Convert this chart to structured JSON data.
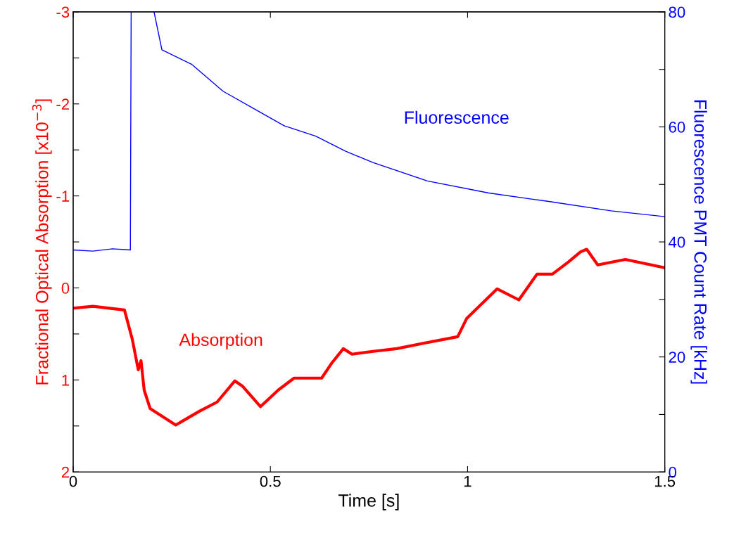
{
  "chart_data": {
    "type": "line",
    "xlabel": "Time [s]",
    "ylabel": "Fractional Optical Absorption [x10$^{−3}$]",
    "y2label": "Fluorescence PMT Count Rate [kHz]",
    "xlim": [
      0,
      1.5
    ],
    "xticks": [
      0,
      0.5,
      1,
      1.5
    ],
    "ylim": [
      2,
      -3
    ],
    "yticks": [
      -3,
      {
        "value": -2.5,
        "label": null
      },
      -2,
      {
        "value": -1.5,
        "label": null
      },
      -1,
      {
        "value": -0.5,
        "label": null
      },
      0,
      {
        "value": 0.5,
        "label": null
      },
      1,
      {
        "value": 1.5,
        "label": null
      },
      2
    ],
    "y2lim": [
      0,
      80
    ],
    "y2ticks": [
      0,
      {
        "value": 10,
        "label": null
      },
      20,
      {
        "value": 30,
        "label": null
      },
      40,
      {
        "value": 50,
        "label": null
      },
      60,
      {
        "value": 70,
        "label": null
      },
      80
    ],
    "grid": false,
    "legend": false,
    "line_style": "solid",
    "marker": "none",
    "series": [
      {
        "color": "#ff0000",
        "x": [
          0,
          0.05,
          0.13,
          0.15,
          0.165,
          0.172,
          0.18,
          0.195,
          0.26,
          0.32,
          0.365,
          0.41,
          0.43,
          0.475,
          0.52,
          0.56,
          0.63,
          0.655,
          0.685,
          0.707,
          0.76,
          0.82,
          0.89,
          0.975,
          0.998,
          1.075,
          1.13,
          1.176,
          1.215,
          1.255,
          1.286,
          1.302,
          1.33,
          1.4,
          1.5
        ],
        "values": [
          0.22,
          0.2,
          0.24,
          0.56,
          0.89,
          0.79,
          1.11,
          1.31,
          1.49,
          1.34,
          1.24,
          1.01,
          1.07,
          1.29,
          1.11,
          0.98,
          0.98,
          0.82,
          0.66,
          0.72,
          0.69,
          0.66,
          0.6,
          0.53,
          0.33,
          0.01,
          0.13,
          -0.15,
          -0.15,
          -0.28,
          -0.39,
          -0.42,
          -0.25,
          -0.31,
          -0.22
        ]
      },
      {
        "color": "#0000ff",
        "axis": "y2",
        "x": [
          0,
          0.05,
          0.1,
          0.145,
          0.147,
          0.18,
          0.205,
          0.225,
          0.3,
          0.38,
          0.46,
          0.535,
          0.615,
          0.69,
          0.76,
          0.898,
          1.054,
          1.209,
          1.364,
          1.5
        ],
        "values": [
          38.6,
          38.4,
          38.8,
          38.6,
          80,
          null,
          80,
          73.4,
          70.9,
          66.2,
          63.1,
          60.2,
          58.4,
          55.8,
          53.8,
          50.6,
          48.5,
          47.0,
          45.4,
          44.4
        ]
      }
    ],
    "annotations": [
      "Absorption",
      "Fluorescence"
    ]
  }
}
